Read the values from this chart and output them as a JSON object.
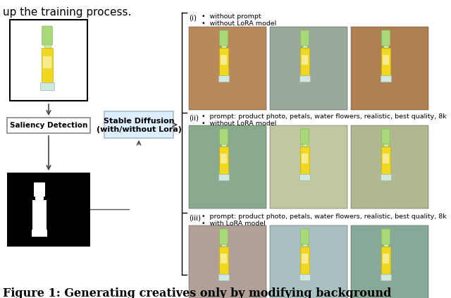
{
  "title_text": "Figure 1: Generating creatives only by modifying background",
  "header_text": "up the training process.",
  "box1_label": "Saliency Detection",
  "sd_line1": "Stable Diffusion",
  "sd_line2": "(with/without Lora)",
  "row_labels": [
    "(i)",
    "(ii)",
    "(iii)"
  ],
  "row_bullet1": [
    "without prompt",
    "prompt: product photo, petals, water flowers, realistic, best quality, 8k",
    "prompt: product photo, petals, water flowers, realistic, best quality, 8k"
  ],
  "row_bullet2": [
    "without LoRA model",
    "without LoRA model",
    "with LoRA model"
  ],
  "bg_color": "#ffffff",
  "sd_box_color": "#ddeeff",
  "sd_box_edge": "#aabbcc",
  "det_box_edge": "#888888",
  "img_colors_row0": [
    "#b8895a",
    "#9aaa9a",
    "#b08050"
  ],
  "img_colors_row1": [
    "#8aaa90",
    "#c0c8a0",
    "#b0b890"
  ],
  "img_colors_row2": [
    "#b0a098",
    "#a8c0c0",
    "#88a898"
  ],
  "title_fontsize": 11.5,
  "label_fontsize": 7.5,
  "header_fontsize": 11,
  "bullet_fontsize": 6.8,
  "row_label_fontsize": 7.5
}
